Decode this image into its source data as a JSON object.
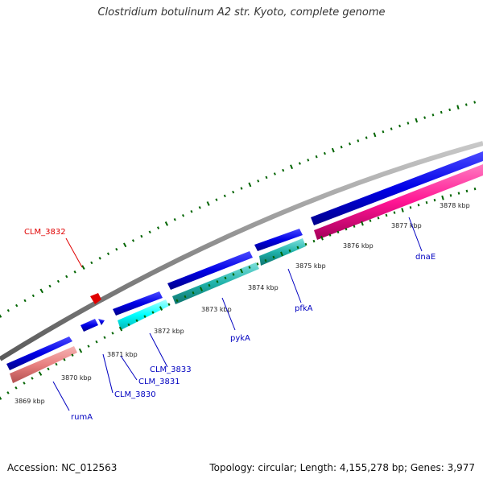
{
  "title": "Clostridium botulinum A2 str. Kyoto, complete genome",
  "accession": "Accession: NC_012563",
  "genome_info": "Topology: circular; Length: 4,155,278 bp; Genes: 3,977",
  "colors": {
    "backbone": "#8c8c8c",
    "forward_cds": "#0000e6",
    "reverse_cds": "#e6e6e6",
    "rRNA": "#e88080",
    "CDS_pykA": "#20b2aa",
    "CDS_dnaE": "#ff1493",
    "CDS_CLM_3833": "#00ffff",
    "gene_label": "#0000c0",
    "highlight_label": "#e00000",
    "tick": "#006400"
  },
  "kbp_labels": [
    "3869 kbp",
    "3870 kbp",
    "3871 kbp",
    "3872 kbp",
    "3873 kbp",
    "3874 kbp",
    "3875 kbp",
    "3876 kbp",
    "3877 kbp",
    "3878 kbp"
  ],
  "genes": [
    {
      "name": "CLM_3832",
      "strand": "+",
      "highlight": true
    },
    {
      "name": "CLM_3833",
      "strand": "-"
    },
    {
      "name": "CLM_3831",
      "strand": "+"
    },
    {
      "name": "CLM_3830",
      "strand": "+"
    },
    {
      "name": "rumA",
      "strand": "-"
    },
    {
      "name": "pykA",
      "strand": "-"
    },
    {
      "name": "pfkA",
      "strand": "-"
    },
    {
      "name": "dnaE",
      "strand": "-"
    }
  ]
}
